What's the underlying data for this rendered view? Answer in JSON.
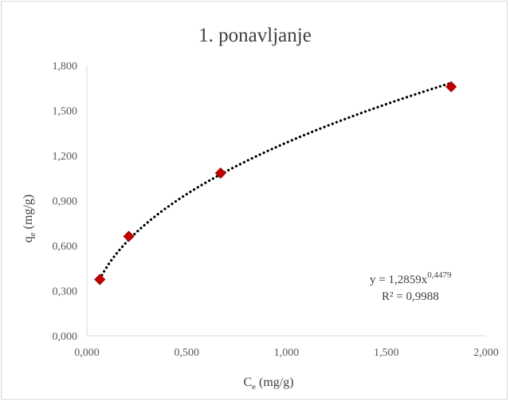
{
  "chart_data": {
    "type": "scatter",
    "title": "1. ponavljanje",
    "xlabel": {
      "base": "C",
      "sub": "e",
      "unit": " (mg/g)"
    },
    "ylabel": {
      "base": "q",
      "sub": "e",
      "unit": " (mg/g)"
    },
    "xlim": [
      0,
      2
    ],
    "ylim": [
      0,
      1.8
    ],
    "x_ticks": [
      0,
      0.5,
      1,
      1.5,
      2
    ],
    "y_ticks": [
      0,
      0.3,
      0.6,
      0.9,
      1.2,
      1.5,
      1.8
    ],
    "x_tick_labels": [
      "0,000",
      "0,500",
      "1,000",
      "1,500",
      "2,000"
    ],
    "y_tick_labels": [
      "0,000",
      "0,300",
      "0,600",
      "0,900",
      "1,200",
      "1,500",
      "1,800"
    ],
    "grid": false,
    "legend": "none",
    "series": [
      {
        "marker": "diamond",
        "color": "#c00000",
        "x": [
          0.065,
          0.21,
          0.67,
          1.825
        ],
        "y": [
          0.375,
          0.662,
          1.083,
          1.658
        ]
      }
    ],
    "trendline": {
      "kind": "power",
      "a": 1.2859,
      "b": 0.4479,
      "style": "dotted",
      "color": "#000000",
      "equation_base": "y = 1,2859x",
      "equation_exp": "0,4479",
      "r2_text": "R² = 0,9988"
    }
  }
}
